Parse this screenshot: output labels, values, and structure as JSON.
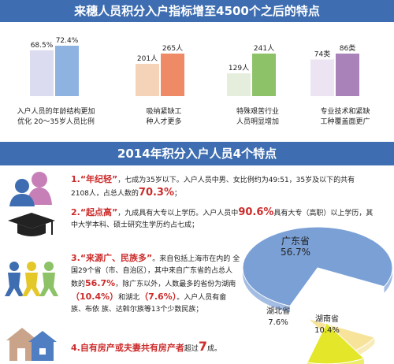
{
  "header": {
    "title": "来穗人员积分入户指标增至4500个之后的特点"
  },
  "section2": {
    "title": "2014年积分入户人员4个特点"
  },
  "chart_data": [
    {
      "type": "bar",
      "groups": [
        {
          "values": [
            68.5,
            72.4
          ],
          "labels": [
            "68.5%",
            "72.4%"
          ],
          "caption": [
            "入户人员的年龄结构更加",
            "优化 20～35岁人员比例"
          ]
        },
        {
          "values": [
            201,
            265
          ],
          "labels": [
            "201人",
            "265人"
          ],
          "caption": [
            "吸纳紧缺工",
            "种人才更多"
          ]
        },
        {
          "values": [
            129,
            241
          ],
          "labels": [
            "129人",
            "241人"
          ],
          "caption": [
            "特殊艰苦行业",
            "人员明显增加"
          ]
        },
        {
          "values": [
            74,
            86
          ],
          "labels": [
            "74类",
            "86类"
          ],
          "caption": [
            "专业技术和紧缺",
            "工种覆盖面更广"
          ]
        }
      ],
      "colors": [
        "#dcdcf0",
        "#8fb3e0",
        "#f5d3b8",
        "#ee8a66",
        "#e5eedc",
        "#8dc268",
        "#ece4f2",
        "#a882b8"
      ]
    },
    {
      "type": "pie",
      "slices": [
        {
          "name": "广东省",
          "value": 56.7,
          "label": "56.7%",
          "color": "#7aa0d6"
        },
        {
          "name": "湖北省",
          "value": 7.6,
          "label": "7.6%",
          "color": "#f7e39a"
        },
        {
          "name": "湖南省",
          "value": 10.4,
          "label": "10.4%",
          "color": "#e4e62a"
        }
      ]
    }
  ],
  "items": [
    {
      "title": "1.“年纪轻”",
      "line1a": "，七成为35岁以下。入户人员中男、女比例约为49:51，35岁及以下的共有",
      "line2a": "2108人，占总人数的",
      "pct": "70.3%",
      "tail": "；"
    },
    {
      "title": "2.“起点高”",
      "line1a": "，九成具有大专以上学历。入户人员中",
      "pct": "90.6%",
      "line1b": "具有大专（高职）以上学历，其",
      "line2a": "中大学本科、硕士研究生学历约占七成；"
    },
    {
      "title": "3.“来源广、民族多”",
      "line1a": "。来自包括上海市在内的",
      "line2": "全国29个省（市、自治区），其中来自广东省的占总人",
      "line3a": "数的",
      "pct1": "56.7%",
      "line3b": "，除广东以外，人数最多的省份为湖南",
      "pct2": "（10.4%）",
      "mid": "和湖北",
      "pct3": "（7.6%）",
      "line4b": "。入户人员有畲族、布依",
      "line5": "族、达斡尔族等13个少数民族；"
    },
    {
      "title": "4.自有房产或夫妻共有房产者",
      "mid": "超过",
      "big": "7",
      "tail": "成。"
    }
  ]
}
